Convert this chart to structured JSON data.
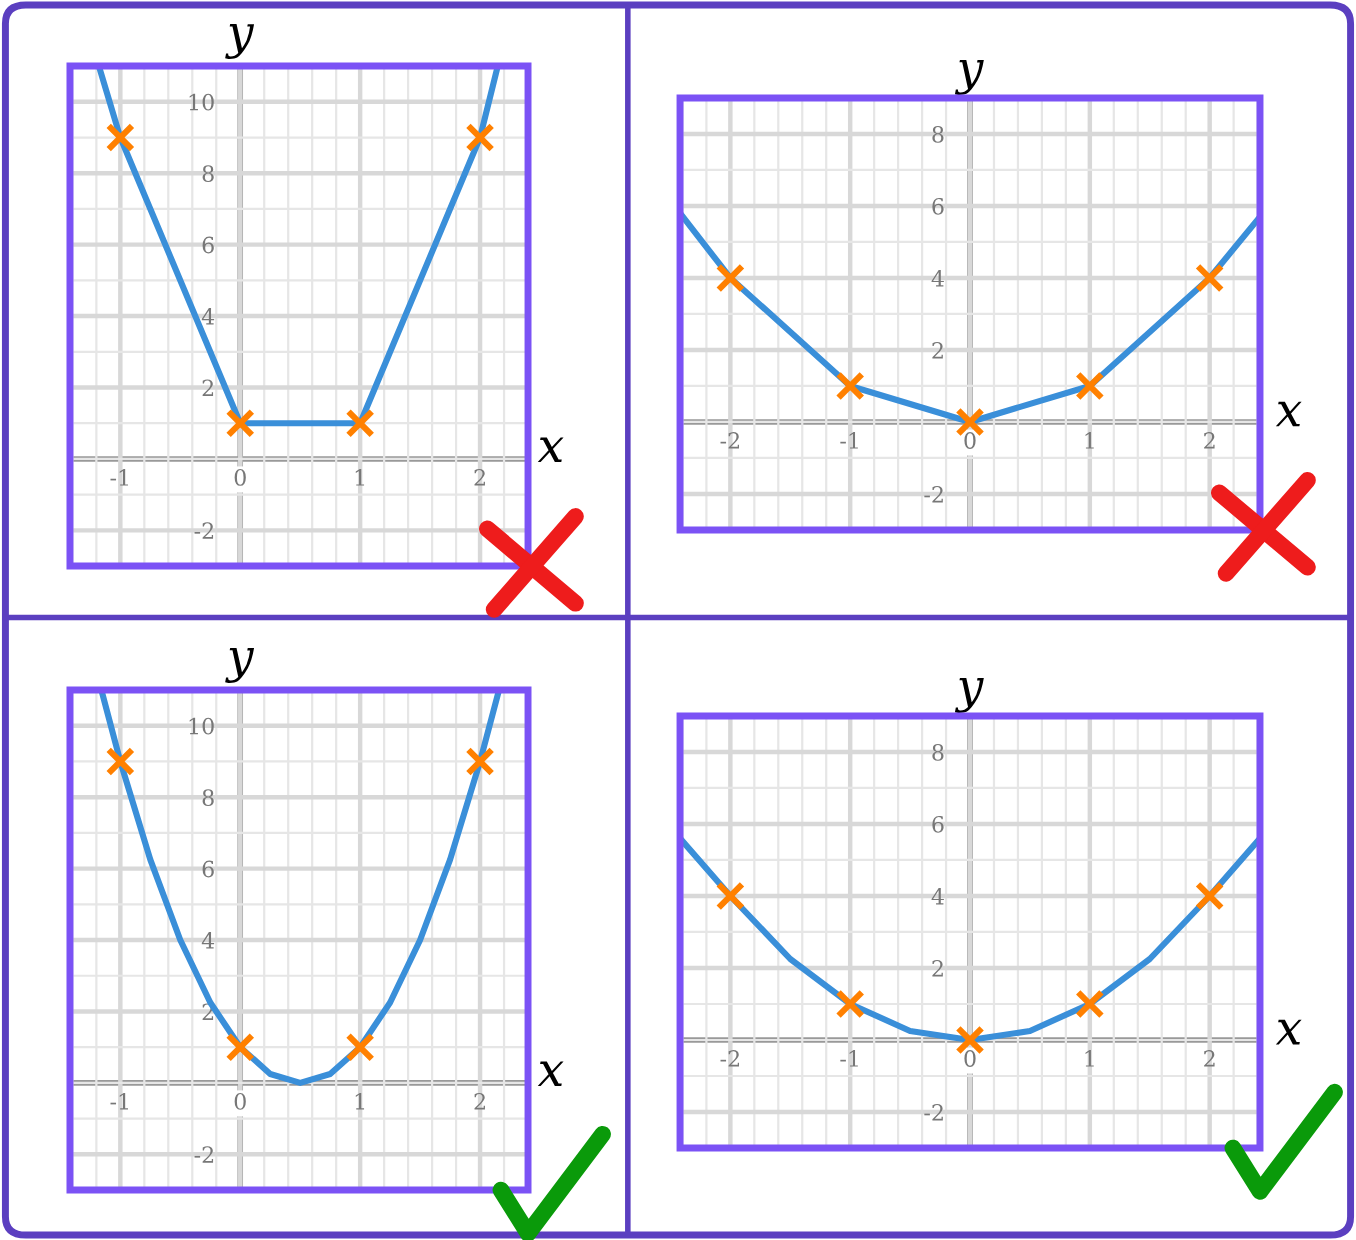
{
  "chart_data": [
    {
      "type": "line",
      "xlabel": "x",
      "ylabel": "y",
      "xlim": [
        -1.42,
        2.4
      ],
      "ylim": [
        -3,
        11
      ],
      "xticks": [
        -1,
        0,
        1,
        2
      ],
      "yticks": [
        -2,
        2,
        4,
        6,
        8,
        10
      ],
      "grid": true,
      "series": [
        {
          "type": "line",
          "color": "#3a8fd9",
          "x": [
            -1.17,
            -1,
            0,
            1,
            2,
            2.14
          ],
          "values": [
            10.9,
            9,
            1,
            1,
            9,
            10.9
          ]
        },
        {
          "type": "scatter",
          "color": "#ff8000",
          "marker": "cross",
          "x": [
            -1,
            0,
            1,
            2
          ],
          "values": [
            9,
            1,
            1,
            9
          ]
        }
      ]
    },
    {
      "type": "line",
      "xlabel": "x",
      "ylabel": "y",
      "xlim": [
        -2.42,
        2.42
      ],
      "ylim": [
        -3,
        9
      ],
      "xticks": [
        -2,
        -1,
        0,
        1,
        2
      ],
      "yticks": [
        -2,
        2,
        4,
        6,
        8
      ],
      "grid": true,
      "series": [
        {
          "type": "line",
          "color": "#3a8fd9",
          "x": [
            -2.42,
            -2,
            -1,
            0,
            1,
            2,
            2.42
          ],
          "values": [
            5.8,
            4,
            1,
            0,
            1,
            4,
            5.7
          ]
        },
        {
          "type": "scatter",
          "color": "#ff8000",
          "marker": "cross",
          "x": [
            -2,
            -1,
            0,
            1,
            2
          ],
          "values": [
            4,
            1,
            0,
            1,
            4
          ]
        }
      ]
    },
    {
      "type": "line",
      "xlabel": "x",
      "ylabel": "y",
      "xlim": [
        -1.42,
        2.4
      ],
      "ylim": [
        -3,
        11
      ],
      "xticks": [
        -1,
        0,
        1,
        2
      ],
      "yticks": [
        -2,
        2,
        4,
        6,
        8,
        10
      ],
      "grid": true,
      "series": [
        {
          "type": "line",
          "color": "#3a8fd9",
          "x": [
            -1.15,
            -1,
            -0.75,
            -0.5,
            -0.25,
            0,
            0.25,
            0.5,
            0.75,
            1,
            1.25,
            1.5,
            1.75,
            2,
            2.15
          ],
          "values": [
            10.9,
            9,
            6.25,
            4,
            2.25,
            1,
            0.25,
            0,
            0.25,
            1,
            2.25,
            4,
            6.25,
            9,
            10.9
          ]
        },
        {
          "type": "scatter",
          "color": "#ff8000",
          "marker": "cross",
          "x": [
            -1,
            0,
            1,
            2
          ],
          "values": [
            9,
            1,
            1,
            9
          ]
        }
      ]
    },
    {
      "type": "line",
      "xlabel": "x",
      "ylabel": "y",
      "xlim": [
        -2.42,
        2.42
      ],
      "ylim": [
        -3,
        9
      ],
      "xticks": [
        -2,
        -1,
        0,
        1,
        2
      ],
      "yticks": [
        -2,
        2,
        4,
        6,
        8
      ],
      "grid": true,
      "series": [
        {
          "type": "line",
          "color": "#3a8fd9",
          "x": [
            -2.42,
            -2,
            -1.5,
            -1,
            -0.5,
            0,
            0.5,
            1,
            1.5,
            2,
            2.42
          ],
          "values": [
            5.6,
            4,
            2.25,
            1,
            0.25,
            0,
            0.25,
            1,
            2.25,
            4,
            5.6
          ]
        },
        {
          "type": "scatter",
          "color": "#ff8000",
          "marker": "cross",
          "x": [
            -2,
            -1,
            0,
            1,
            2
          ],
          "values": [
            4,
            1,
            0,
            1,
            4
          ]
        }
      ]
    }
  ]
}
